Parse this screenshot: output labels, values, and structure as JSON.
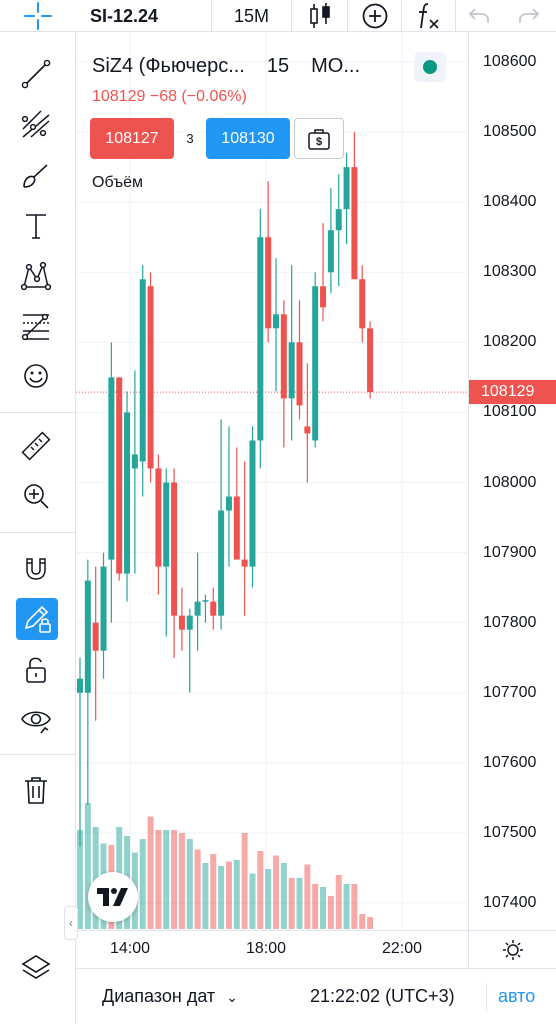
{
  "toolbar": {
    "symbol": "SI-12.24",
    "interval": "15M",
    "fx_label": "f"
  },
  "legend": {
    "title": "SiZ4 (Фьючерс...",
    "interval": "15",
    "exchange": "MO...",
    "last_price": "108129",
    "change": "−68 (−0.06%)",
    "sell_price": "108127",
    "spread": "3",
    "buy_price": "108130",
    "volume_label": "Объём"
  },
  "colors": {
    "up": "#26a69a",
    "down": "#ef5350",
    "accent": "#2196f3",
    "status": "#089981"
  },
  "price_scale": {
    "ticks": [
      "108600",
      "108500",
      "108400",
      "108300",
      "108200",
      "108100",
      "108000",
      "107900",
      "107800",
      "107700",
      "107600",
      "107500",
      "107400"
    ],
    "last_label": "108129"
  },
  "time_axis": {
    "ticks": [
      "14:00",
      "18:00",
      "22:00"
    ]
  },
  "bottom_bar": {
    "range_label": "Диапазон дат",
    "clock": "21:22:02 (UTC+3)",
    "auto_label": "авто"
  },
  "chart_data": {
    "type": "candlestick",
    "symbol": "SI-12.24",
    "interval": "15M",
    "ylim": [
      107360,
      108630
    ],
    "last_price": 108129,
    "candles": [
      {
        "o": 107700,
        "h": 107750,
        "l": 107480,
        "c": 107720
      },
      {
        "o": 107700,
        "h": 107890,
        "l": 107540,
        "c": 107860
      },
      {
        "o": 107800,
        "h": 107880,
        "l": 107660,
        "c": 107760
      },
      {
        "o": 107760,
        "h": 107900,
        "l": 107720,
        "c": 107880
      },
      {
        "o": 107890,
        "h": 108200,
        "l": 107800,
        "c": 108150
      },
      {
        "o": 108150,
        "h": 108150,
        "l": 107860,
        "c": 107870
      },
      {
        "o": 107870,
        "h": 108130,
        "l": 107830,
        "c": 108100
      },
      {
        "o": 108020,
        "h": 108160,
        "l": 107870,
        "c": 108040
      },
      {
        "o": 108030,
        "h": 108310,
        "l": 107980,
        "c": 108290
      },
      {
        "o": 108280,
        "h": 108300,
        "l": 108000,
        "c": 108020
      },
      {
        "o": 108020,
        "h": 108040,
        "l": 107840,
        "c": 107880
      },
      {
        "o": 107880,
        "h": 108020,
        "l": 107780,
        "c": 108000
      },
      {
        "o": 108000,
        "h": 108020,
        "l": 107750,
        "c": 107810
      },
      {
        "o": 107810,
        "h": 107850,
        "l": 107760,
        "c": 107790
      },
      {
        "o": 107790,
        "h": 107820,
        "l": 107700,
        "c": 107810
      },
      {
        "o": 107810,
        "h": 107900,
        "l": 107760,
        "c": 107830
      },
      {
        "o": 107830,
        "h": 107840,
        "l": 107800,
        "c": 107832
      },
      {
        "o": 107830,
        "h": 107850,
        "l": 107790,
        "c": 107810
      },
      {
        "o": 107810,
        "h": 108090,
        "l": 107790,
        "c": 107960
      },
      {
        "o": 107960,
        "h": 108080,
        "l": 107880,
        "c": 107980
      },
      {
        "o": 107980,
        "h": 108050,
        "l": 107900,
        "c": 107890
      },
      {
        "o": 107890,
        "h": 108030,
        "l": 107810,
        "c": 107880
      },
      {
        "o": 107880,
        "h": 108080,
        "l": 107850,
        "c": 108060
      },
      {
        "o": 108060,
        "h": 108390,
        "l": 108020,
        "c": 108350
      },
      {
        "o": 108350,
        "h": 108430,
        "l": 108200,
        "c": 108220
      },
      {
        "o": 108220,
        "h": 108320,
        "l": 108130,
        "c": 108240
      },
      {
        "o": 108240,
        "h": 108260,
        "l": 108050,
        "c": 108120
      },
      {
        "o": 108120,
        "h": 108310,
        "l": 108060,
        "c": 108200
      },
      {
        "o": 108200,
        "h": 108260,
        "l": 108090,
        "c": 108110
      },
      {
        "o": 108080,
        "h": 108170,
        "l": 108000,
        "c": 108070
      },
      {
        "o": 108060,
        "h": 108300,
        "l": 108050,
        "c": 108280
      },
      {
        "o": 108280,
        "h": 108370,
        "l": 108230,
        "c": 108250
      },
      {
        "o": 108300,
        "h": 108420,
        "l": 108270,
        "c": 108360
      },
      {
        "o": 108360,
        "h": 108440,
        "l": 108280,
        "c": 108390
      },
      {
        "o": 108390,
        "h": 108470,
        "l": 108340,
        "c": 108450
      },
      {
        "o": 108450,
        "h": 108500,
        "l": 108290,
        "c": 108290
      },
      {
        "o": 108290,
        "h": 108310,
        "l": 108200,
        "c": 108220
      },
      {
        "o": 108220,
        "h": 108230,
        "l": 108120,
        "c": 108129
      }
    ],
    "volumes": [
      {
        "v": 0.66,
        "up": true
      },
      {
        "v": 0.84,
        "up": true
      },
      {
        "v": 0.68,
        "up": true
      },
      {
        "v": 0.57,
        "up": true
      },
      {
        "v": 0.56,
        "up": false
      },
      {
        "v": 0.68,
        "up": true
      },
      {
        "v": 0.62,
        "up": true
      },
      {
        "v": 0.51,
        "up": true
      },
      {
        "v": 0.6,
        "up": true
      },
      {
        "v": 0.75,
        "up": false
      },
      {
        "v": 0.66,
        "up": false
      },
      {
        "v": 0.66,
        "up": true
      },
      {
        "v": 0.66,
        "up": false
      },
      {
        "v": 0.64,
        "up": false
      },
      {
        "v": 0.6,
        "up": true
      },
      {
        "v": 0.53,
        "up": false
      },
      {
        "v": 0.44,
        "up": true
      },
      {
        "v": 0.5,
        "up": false
      },
      {
        "v": 0.42,
        "up": true
      },
      {
        "v": 0.45,
        "up": false
      },
      {
        "v": 0.46,
        "up": true
      },
      {
        "v": 0.64,
        "up": false
      },
      {
        "v": 0.37,
        "up": true
      },
      {
        "v": 0.52,
        "up": false
      },
      {
        "v": 0.4,
        "up": true
      },
      {
        "v": 0.49,
        "up": false
      },
      {
        "v": 0.44,
        "up": true
      },
      {
        "v": 0.34,
        "up": false
      },
      {
        "v": 0.34,
        "up": true
      },
      {
        "v": 0.43,
        "up": false
      },
      {
        "v": 0.3,
        "up": false
      },
      {
        "v": 0.28,
        "up": true
      },
      {
        "v": 0.22,
        "up": false
      },
      {
        "v": 0.36,
        "up": false
      },
      {
        "v": 0.3,
        "up": true
      },
      {
        "v": 0.3,
        "up": false
      },
      {
        "v": 0.1,
        "up": false
      },
      {
        "v": 0.08,
        "up": false
      }
    ]
  }
}
